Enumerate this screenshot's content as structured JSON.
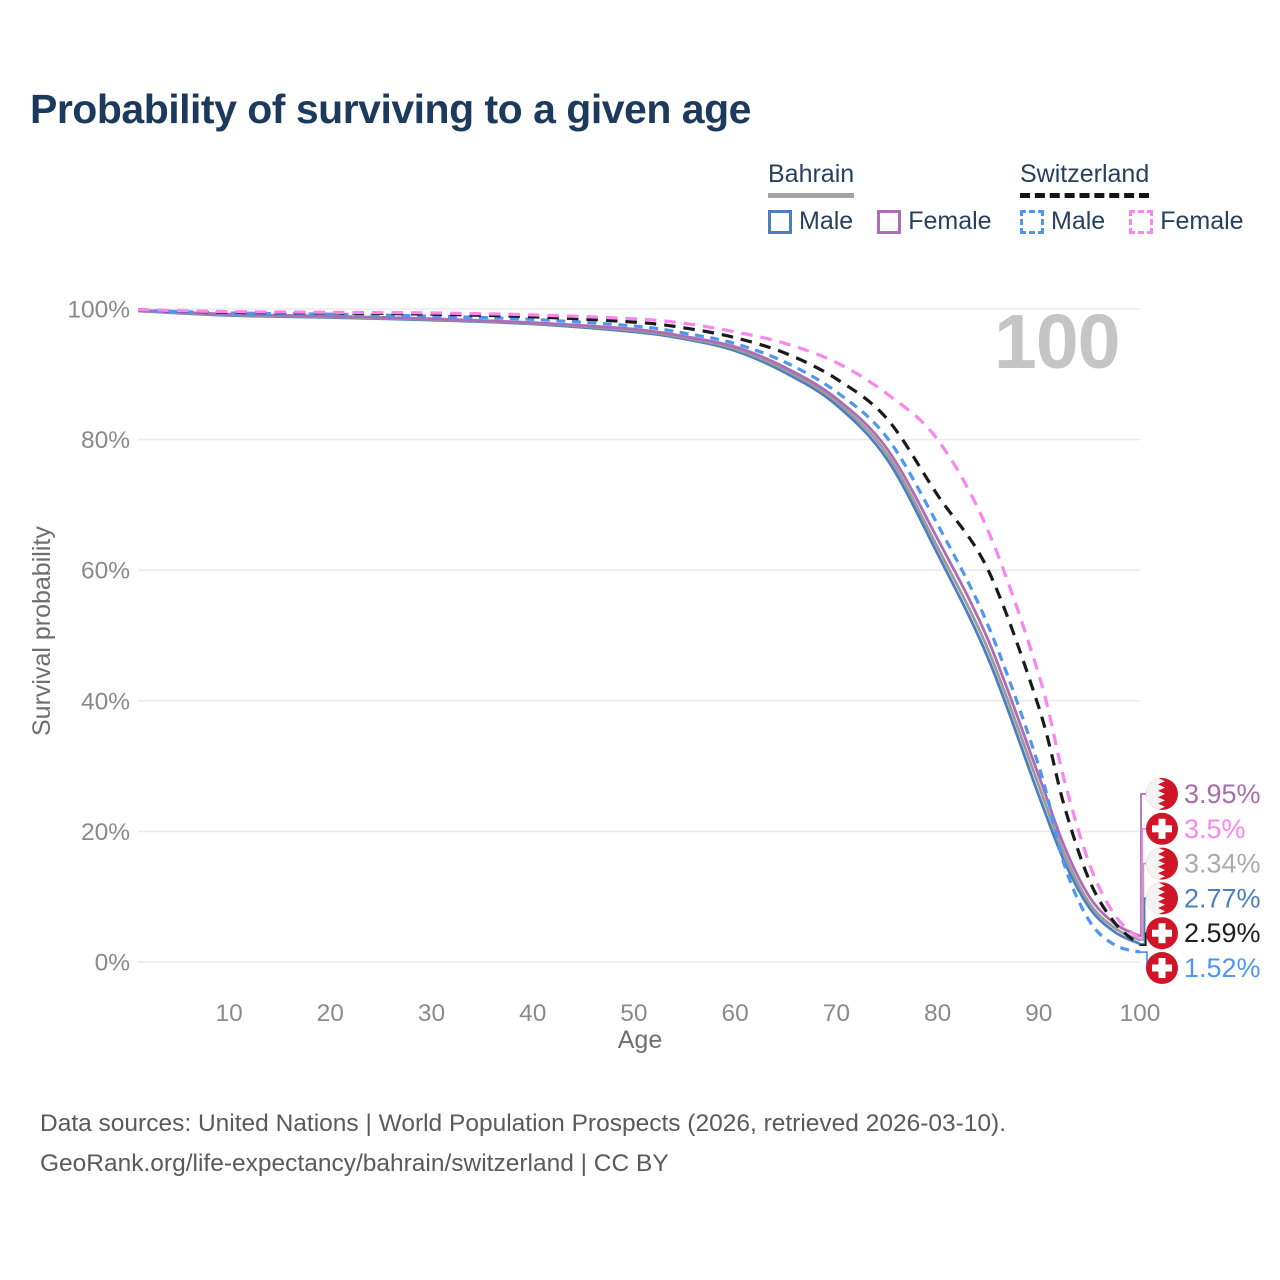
{
  "title": "Probability of surviving to a given age",
  "watermark": "100",
  "legend": {
    "groups": [
      {
        "label": "Bahrain",
        "line_style": "solid",
        "line_color": "#a3a3a3",
        "items": [
          {
            "label": "Male",
            "color": "#4d7ebf"
          },
          {
            "label": "Female",
            "color": "#ae6cb4"
          }
        ]
      },
      {
        "label": "Switzerland",
        "line_style": "dashed",
        "line_color": "#141414",
        "items": [
          {
            "label": "Male",
            "color": "#4e96f2"
          },
          {
            "label": "Female",
            "color": "#fb85ee"
          }
        ]
      }
    ]
  },
  "footer": {
    "line1": "Data sources: United Nations | World Population Prospects (2026, retrieved 2026-03-10).",
    "line2": "GeoRank.org/life-expectancy/bahrain/switzerland | CC BY"
  },
  "chart_data": {
    "type": "line",
    "title": "Probability of surviving to a given age",
    "xlabel": "Age",
    "ylabel": "Survival probability",
    "xlim": [
      1,
      100
    ],
    "ylim": [
      0,
      100
    ],
    "grid": "horizontal",
    "legend_position": "top-right",
    "age_watermark": "100",
    "x_ticks": [
      10,
      20,
      30,
      40,
      50,
      60,
      70,
      80,
      90,
      100
    ],
    "y_ticks": [
      {
        "value": 0,
        "label": "0%"
      },
      {
        "value": 20,
        "label": "20%"
      },
      {
        "value": 40,
        "label": "40%"
      },
      {
        "value": 60,
        "label": "60%"
      },
      {
        "value": 80,
        "label": "80%"
      },
      {
        "value": 100,
        "label": "100%"
      }
    ],
    "x": [
      1,
      10,
      20,
      30,
      40,
      50,
      55,
      60,
      65,
      70,
      75,
      80,
      85,
      90,
      92.5,
      95,
      97.5,
      100
    ],
    "series": [
      {
        "name": "Bahrain Male",
        "country": "Bahrain",
        "sex": "Male",
        "line_style": "solid",
        "color": "#4d7ebf",
        "values": [
          99.7,
          99.0,
          98.7,
          98.3,
          97.7,
          96.5,
          95.4,
          93.6,
          90.2,
          85.3,
          77.0,
          62.5,
          46.5,
          25.5,
          15.5,
          8.3,
          4.6,
          2.77
        ]
      },
      {
        "name": "Bahrain",
        "country": "Bahrain",
        "sex": "Both",
        "line_style": "solid",
        "color": "#9b9b9b",
        "values": [
          99.7,
          99.1,
          98.8,
          98.4,
          97.8,
          96.7,
          95.6,
          93.9,
          90.6,
          85.8,
          77.8,
          63.5,
          47.8,
          27.0,
          16.6,
          9.0,
          5.2,
          3.34
        ]
      },
      {
        "name": "Bahrain Female",
        "country": "Bahrain",
        "sex": "Female",
        "line_style": "solid",
        "color": "#ae6cb4",
        "values": [
          99.8,
          99.2,
          98.9,
          98.5,
          97.9,
          96.9,
          95.8,
          94.2,
          91.0,
          86.3,
          78.6,
          64.8,
          49.3,
          28.5,
          17.8,
          10.0,
          5.9,
          3.95
        ]
      },
      {
        "name": "Switzerland Male",
        "country": "Switzerland",
        "sex": "Male",
        "line_style": "dashed",
        "color": "#4e96f2",
        "values": [
          99.8,
          99.4,
          99.2,
          98.9,
          98.4,
          97.4,
          96.3,
          94.7,
          91.8,
          87.3,
          80.3,
          67.0,
          51.5,
          30.0,
          15.0,
          6.3,
          2.6,
          1.52
        ]
      },
      {
        "name": "Switzerland",
        "country": "Switzerland",
        "sex": "Both",
        "line_style": "dashed",
        "color": "#1a1a1a",
        "values": [
          99.9,
          99.5,
          99.4,
          99.2,
          98.8,
          98.0,
          97.1,
          95.6,
          93.2,
          89.3,
          83.2,
          71.5,
          60.0,
          39.0,
          24.0,
          12.5,
          6.0,
          2.59
        ]
      },
      {
        "name": "Switzerland Female",
        "country": "Switzerland",
        "sex": "Female",
        "line_style": "dashed",
        "color": "#fb85ee",
        "values": [
          99.9,
          99.6,
          99.5,
          99.4,
          99.1,
          98.5,
          97.8,
          96.5,
          94.7,
          91.8,
          87.0,
          80.0,
          66.0,
          44.0,
          28.0,
          15.0,
          7.2,
          3.5
        ]
      }
    ],
    "end_labels": [
      {
        "value": "3.95%",
        "series": "Bahrain Female",
        "flag": "bahrain",
        "color": "#a86cae"
      },
      {
        "value": "3.5%",
        "series": "Switzerland Female",
        "flag": "switzerland",
        "color": "#fb85ee"
      },
      {
        "value": "3.34%",
        "series": "Bahrain",
        "flag": "bahrain",
        "color": "#ababab"
      },
      {
        "value": "2.77%",
        "series": "Bahrain Male",
        "flag": "bahrain",
        "color": "#4d7ebf"
      },
      {
        "value": "2.59%",
        "series": "Switzerland",
        "flag": "switzerland",
        "color": "#1f1f1f"
      },
      {
        "value": "1.52%",
        "series": "Switzerland Male",
        "flag": "switzerland",
        "color": "#4e96f2"
      }
    ],
    "flag_red": "#d01528"
  }
}
